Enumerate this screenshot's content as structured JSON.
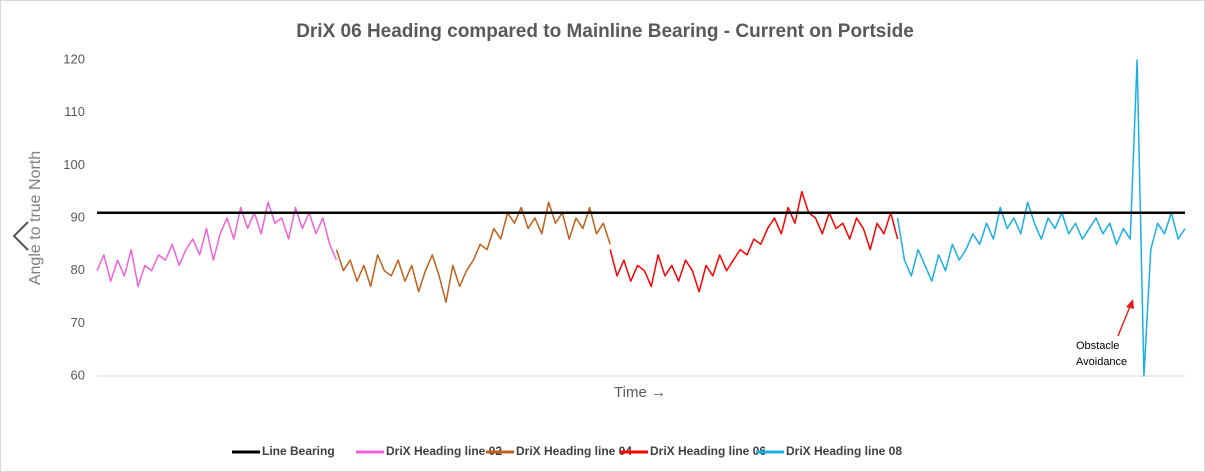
{
  "chart_data": {
    "type": "line",
    "title": "DriX 06 Heading compared to Mainline Bearing - Current on Portside",
    "y_label": "Angle to true North",
    "x_label": "Time →",
    "annotation": [
      "Obstacle",
      "Avoidance"
    ],
    "xlim": [
      0,
      159
    ],
    "ylim": [
      60,
      120
    ],
    "yticks": [
      60,
      70,
      80,
      90,
      100,
      110,
      120
    ],
    "grid": false,
    "legend": "bottom",
    "series": [
      {
        "name": "Line Bearing",
        "color": "#000000",
        "x": [
          0,
          159
        ],
        "values": [
          91,
          91
        ]
      },
      {
        "name": "DriX Heading line 02",
        "color": "#f062d8",
        "x": [
          0,
          1,
          2,
          3,
          4,
          5,
          6,
          7,
          8,
          9,
          10,
          11,
          12,
          13,
          14,
          15,
          16,
          17,
          18,
          19,
          20,
          21,
          22,
          23,
          24,
          25,
          26,
          27,
          28,
          29,
          30,
          31,
          32,
          33,
          34,
          35
        ],
        "values": [
          80,
          83,
          78,
          82,
          79,
          84,
          77,
          81,
          80,
          83,
          82,
          85,
          81,
          84,
          86,
          83,
          88,
          82,
          87,
          90,
          86,
          92,
          88,
          91,
          87,
          93,
          89,
          90,
          86,
          92,
          88,
          91,
          87,
          90,
          85,
          82
        ]
      },
      {
        "name": "DriX Heading line 04",
        "color": "#c0601a",
        "x": [
          35,
          36,
          37,
          38,
          39,
          40,
          41,
          42,
          43,
          44,
          45,
          46,
          47,
          48,
          49,
          50,
          51,
          52,
          53,
          54,
          55,
          56,
          57,
          58,
          59,
          60,
          61,
          62,
          63,
          64,
          65,
          66,
          67,
          68,
          69,
          70,
          71,
          72,
          73,
          74,
          75
        ],
        "values": [
          84,
          80,
          82,
          78,
          81,
          77,
          83,
          80,
          79,
          82,
          78,
          81,
          76,
          80,
          83,
          79,
          74,
          81,
          77,
          80,
          82,
          85,
          84,
          88,
          86,
          91,
          89,
          92,
          88,
          90,
          87,
          93,
          89,
          91,
          86,
          90,
          88,
          92,
          87,
          89,
          85
        ]
      },
      {
        "name": "DriX Heading line 06",
        "color": "#ff0000",
        "x": [
          75,
          76,
          77,
          78,
          79,
          80,
          81,
          82,
          83,
          84,
          85,
          86,
          87,
          88,
          89,
          90,
          91,
          92,
          93,
          94,
          95,
          96,
          97,
          98,
          99,
          100,
          101,
          102,
          103,
          104,
          105,
          106,
          107,
          108,
          109,
          110,
          111,
          112,
          113,
          114,
          115,
          116,
          117
        ],
        "values": [
          84,
          79,
          82,
          78,
          81,
          80,
          77,
          83,
          79,
          81,
          78,
          82,
          80,
          76,
          81,
          79,
          83,
          80,
          82,
          84,
          83,
          86,
          85,
          88,
          90,
          87,
          92,
          89,
          95,
          91,
          90,
          87,
          91,
          88,
          89,
          86,
          90,
          88,
          84,
          89,
          87,
          91,
          86
        ]
      },
      {
        "name": "DriX Heading line 08",
        "color": "#1aafe6",
        "x": [
          117,
          118,
          119,
          120,
          121,
          122,
          123,
          124,
          125,
          126,
          127,
          128,
          129,
          130,
          131,
          132,
          133,
          134,
          135,
          136,
          137,
          138,
          139,
          140,
          141,
          142,
          143,
          144,
          145,
          146,
          147,
          148,
          149,
          150,
          151,
          152,
          153,
          154,
          155,
          156,
          157,
          158,
          159
        ],
        "values": [
          90,
          82,
          79,
          84,
          81,
          78,
          83,
          80,
          85,
          82,
          84,
          87,
          85,
          89,
          86,
          92,
          88,
          90,
          87,
          93,
          89,
          86,
          90,
          88,
          91,
          87,
          89,
          86,
          88,
          90,
          87,
          89,
          85,
          88,
          86,
          120,
          60,
          84,
          89,
          87,
          91,
          86,
          88
        ]
      }
    ]
  }
}
